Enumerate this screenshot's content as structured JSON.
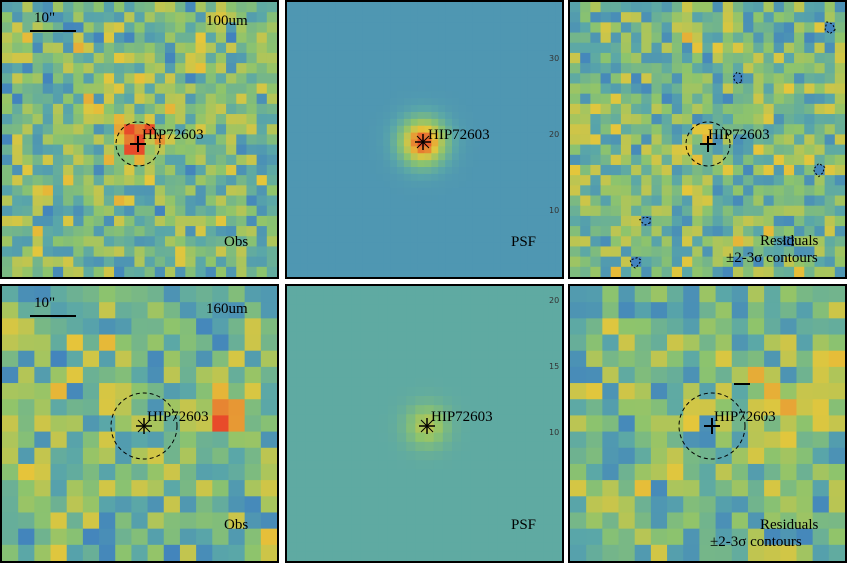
{
  "colors": {
    "background": "#ffffff",
    "frame": "#000000",
    "low": "#4a3a9a",
    "mid_low": "#3f7fc0",
    "mid": "#5aa7a8",
    "mid_high": "#8ec46c",
    "high": "#e6c63a",
    "peak": "#e84a2a"
  },
  "source_name": "HIP72603",
  "rows": [
    {
      "band": "100um",
      "scale": "10\"",
      "obs_label": "Obs",
      "psf_label": "PSF",
      "res_label_1": "Residuals",
      "res_label_2": "±2-3σ contours",
      "psf_axis_ticks": [
        "30",
        "20",
        "10"
      ]
    },
    {
      "band": "160um",
      "scale": "10\"",
      "obs_label": "Obs",
      "psf_label": "PSF",
      "res_label_1": "Residuals",
      "res_label_2": "±2-3σ contours",
      "psf_axis_ticks": [
        "20",
        "15",
        "10"
      ]
    }
  ]
}
